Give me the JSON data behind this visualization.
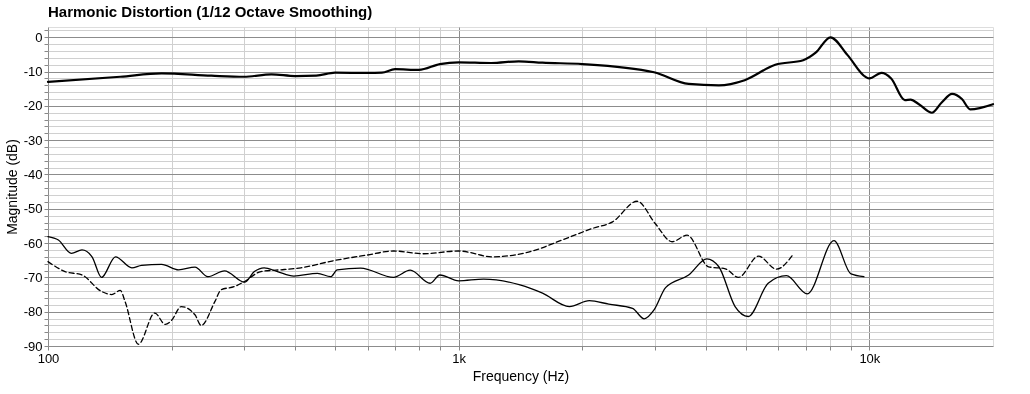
{
  "chart_data": {
    "type": "line",
    "title": "Harmonic Distortion (1/12 Octave Smoothing)",
    "xlabel": "Frequency (Hz)",
    "ylabel": "Magnitude (dB)",
    "log": "x",
    "grid": true,
    "marker": "none",
    "xlim": [
      100,
      20000
    ],
    "ylim": [
      -90,
      3
    ],
    "xticks": [
      100,
      {
        "value": 200,
        "label": null
      },
      {
        "value": 300,
        "label": null
      },
      {
        "value": 400,
        "label": null
      },
      {
        "value": 500,
        "label": null
      },
      {
        "value": 600,
        "label": null
      },
      {
        "value": 700,
        "label": null
      },
      {
        "value": 800,
        "label": null
      },
      {
        "value": 900,
        "label": null
      },
      {
        "value": 1000,
        "label": "1k"
      },
      {
        "value": 2000,
        "label": null
      },
      {
        "value": 3000,
        "label": null
      },
      {
        "value": 4000,
        "label": null
      },
      {
        "value": 5000,
        "label": null
      },
      {
        "value": 6000,
        "label": null
      },
      {
        "value": 7000,
        "label": null
      },
      {
        "value": 8000,
        "label": null
      },
      {
        "value": 9000,
        "label": null
      },
      {
        "value": 10000,
        "label": "10k"
      }
    ],
    "yticks": [
      -90,
      {
        "value": -88,
        "label": null
      },
      {
        "value": -86,
        "label": null
      },
      {
        "value": -84,
        "label": null
      },
      {
        "value": -82,
        "label": null
      },
      -80,
      {
        "value": -78,
        "label": null
      },
      {
        "value": -76,
        "label": null
      },
      {
        "value": -74,
        "label": null
      },
      {
        "value": -72,
        "label": null
      },
      -70,
      {
        "value": -68,
        "label": null
      },
      {
        "value": -66,
        "label": null
      },
      {
        "value": -64,
        "label": null
      },
      {
        "value": -62,
        "label": null
      },
      -60,
      {
        "value": -58,
        "label": null
      },
      {
        "value": -56,
        "label": null
      },
      {
        "value": -54,
        "label": null
      },
      {
        "value": -52,
        "label": null
      },
      -50,
      {
        "value": -48,
        "label": null
      },
      {
        "value": -46,
        "label": null
      },
      {
        "value": -44,
        "label": null
      },
      {
        "value": -42,
        "label": null
      },
      -40,
      {
        "value": -38,
        "label": null
      },
      {
        "value": -36,
        "label": null
      },
      {
        "value": -34,
        "label": null
      },
      {
        "value": -32,
        "label": null
      },
      -30,
      {
        "value": -28,
        "label": null
      },
      {
        "value": -26,
        "label": null
      },
      {
        "value": -24,
        "label": null
      },
      {
        "value": -22,
        "label": null
      },
      -20,
      {
        "value": -18,
        "label": null
      },
      {
        "value": -16,
        "label": null
      },
      {
        "value": -14,
        "label": null
      },
      {
        "value": -12,
        "label": null
      },
      -10,
      {
        "value": -8,
        "label": null
      },
      {
        "value": -6,
        "label": null
      },
      {
        "value": -4,
        "label": null
      },
      {
        "value": -2,
        "label": null
      },
      0,
      {
        "value": 2,
        "label": null
      }
    ],
    "series": [
      {
        "color": "#000000",
        "line_style": "solid",
        "x": [
          100,
          150,
          189,
          250,
          300,
          350,
          400,
          450,
          500,
          600,
          650,
          700,
          800,
          900,
          1000,
          1200,
          1400,
          1600,
          2000,
          2990,
          3630,
          4300,
          4970,
          5900,
          6900,
          7400,
          8040,
          8850,
          9800,
          10000,
          10700,
          11300,
          12200,
          12600,
          13200,
          14200,
          15000,
          15900,
          16800,
          17600,
          20000
        ],
        "values": [
          -13,
          -11.5,
          -10.5,
          -11.2,
          -11.5,
          -10.8,
          -11.3,
          -11.2,
          -10.3,
          -10.4,
          -10.3,
          -9.3,
          -9.5,
          -7.8,
          -7.3,
          -7.5,
          -7,
          -7.4,
          -7.8,
          -10.2,
          -13.6,
          -14,
          -12.5,
          -8,
          -6.7,
          -4.5,
          0,
          -5.2,
          -11.6,
          -12,
          -10.4,
          -12,
          -18.3,
          -18.2,
          -19.5,
          -22,
          -19,
          -16.5,
          -18,
          -21,
          -19.5
        ]
      },
      {
        "color": "#000000",
        "line_style": "dashed",
        "x": [
          100,
          110,
          121,
          135,
          143,
          150,
          154,
          166,
          182,
          193,
          200,
          211,
          228,
          236,
          255,
          264,
          284,
          301,
          330,
          376,
          413,
          497,
          598,
          694,
          821,
          1000,
          1210,
          1460,
          1830,
          2120,
          2370,
          2720,
          3010,
          3310,
          3600,
          4060,
          4460,
          4800,
          5370,
          5940,
          6520
        ],
        "values": [
          -65.4,
          -68.3,
          -69.3,
          -74.1,
          -75,
          -73.8,
          -77,
          -89.5,
          -80.4,
          -83.7,
          -82.5,
          -78.5,
          -80.9,
          -84,
          -77,
          -73.6,
          -72.7,
          -71.2,
          -68.3,
          -67.7,
          -67.2,
          -65.1,
          -63.5,
          -62.3,
          -63.1,
          -62.3,
          -64,
          -62.8,
          -58.6,
          -55.7,
          -53.8,
          -47.8,
          -54.3,
          -59.6,
          -57.7,
          -66.9,
          -67.5,
          -70,
          -63.8,
          -67.6,
          -63.3
        ]
      },
      {
        "color": "#000000",
        "line_style": "solid",
        "x": [
          100,
          106,
          114,
          121,
          128,
          135,
          146,
          160,
          169,
          189,
          208,
          228,
          245,
          269,
          301,
          318,
          336,
          362,
          397,
          453,
          488,
          506,
          577,
          694,
          762,
          852,
          900,
          1000,
          1150,
          1410,
          1600,
          1860,
          2080,
          2320,
          2650,
          2830,
          2990,
          3190,
          3630,
          4020,
          4300,
          4710,
          5070,
          5670,
          6280,
          7060,
          8200,
          9020,
          9700
        ],
        "values": [
          -58.1,
          -59.1,
          -63,
          -62,
          -64,
          -70,
          -64,
          -67.2,
          -66.5,
          -66.2,
          -67.8,
          -67,
          -69.8,
          -68.1,
          -71.4,
          -68.3,
          -67.2,
          -68.3,
          -69.6,
          -68.8,
          -69.8,
          -67.8,
          -67.3,
          -70,
          -67.9,
          -71.7,
          -69.3,
          -71,
          -70.5,
          -72.2,
          -74.6,
          -78.5,
          -76.8,
          -77.8,
          -79,
          -82.1,
          -79.5,
          -73,
          -69.3,
          -64.6,
          -66.9,
          -78.5,
          -81.4,
          -71.7,
          -69.5,
          -74.8,
          -59.3,
          -69,
          -69.8
        ]
      }
    ]
  }
}
